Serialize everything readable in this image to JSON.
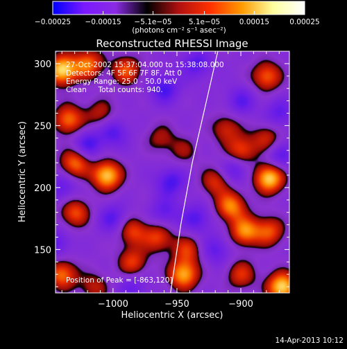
{
  "chart_data": {
    "type": "heatmap",
    "title": "Reconstructed RHESSI Image",
    "xlabel": "Heliocentric X (arcsec)",
    "ylabel": "Heliocentric Y (arcsec)",
    "xlim": [
      -1045,
      -862
    ],
    "ylim": [
      115,
      310
    ],
    "x_ticks": [
      -1000,
      -950,
      -900
    ],
    "x_tick_labels": [
      "−1000",
      "−950",
      "−900"
    ],
    "y_ticks": [
      150,
      200,
      250,
      300
    ],
    "y_tick_labels": [
      "150",
      "200",
      "250",
      "300"
    ],
    "colorbar": {
      "min": -0.00025,
      "max": 0.00025,
      "ticks": [
        -0.00025,
        -0.00015,
        -5.1e-05,
        5.1e-05,
        0.00015,
        0.00025
      ],
      "tick_labels": [
        "−0.00025",
        "−0.00015",
        "−5.1e−05",
        "5.1e−05",
        "0.00015",
        "0.00025"
      ],
      "unit_label": "(photons cm⁻² s⁻¹ asec⁻²)",
      "colors": [
        "#0000ff",
        "#7a1aff",
        "#8a2be2",
        "#000000",
        "#b01010",
        "#ff3000",
        "#ff9a00",
        "#ffffa0",
        "#ffffff"
      ]
    },
    "annotations": [
      "27-Oct-2002 15:37:04.000 to 15:38:08.000",
      "Detectors: 4F 5F 6F 7F 8F, Att 0",
      "Energy Range: 25.0 - 50.0 keV",
      "Clean     Total counts: 940."
    ],
    "peak_label": "Position of Peak = [-863,120]",
    "limb": [
      [
        -955,
        115
      ],
      [
        -947,
        170
      ],
      [
        -938,
        220
      ],
      [
        -928,
        265
      ],
      [
        -918,
        310
      ]
    ],
    "peaks": [
      {
        "x": -1040,
        "y": 295,
        "v": 1.0
      },
      {
        "x": -1035,
        "y": 255,
        "v": 0.7
      },
      {
        "x": -1030,
        "y": 220,
        "v": 0.7
      },
      {
        "x": -1005,
        "y": 210,
        "v": 0.95
      },
      {
        "x": -1030,
        "y": 180,
        "v": 0.6
      },
      {
        "x": -1020,
        "y": 300,
        "v": 0.7
      },
      {
        "x": -990,
        "y": 295,
        "v": 0.6
      },
      {
        "x": -1010,
        "y": 260,
        "v": 0.4
      },
      {
        "x": -985,
        "y": 165,
        "v": 0.55
      },
      {
        "x": -985,
        "y": 140,
        "v": 0.55
      },
      {
        "x": -965,
        "y": 160,
        "v": 0.55
      },
      {
        "x": -945,
        "y": 130,
        "v": 0.85
      },
      {
        "x": -942,
        "y": 150,
        "v": 0.5
      },
      {
        "x": -1040,
        "y": 130,
        "v": 0.7
      },
      {
        "x": -1015,
        "y": 120,
        "v": 0.4
      },
      {
        "x": -900,
        "y": 230,
        "v": 0.6
      },
      {
        "x": -878,
        "y": 208,
        "v": 1.0
      },
      {
        "x": -880,
        "y": 240,
        "v": 0.45
      },
      {
        "x": -880,
        "y": 290,
        "v": 0.65
      },
      {
        "x": -908,
        "y": 185,
        "v": 0.75
      },
      {
        "x": -920,
        "y": 205,
        "v": 0.5
      },
      {
        "x": -897,
        "y": 165,
        "v": 0.75
      },
      {
        "x": -878,
        "y": 165,
        "v": 0.6
      },
      {
        "x": -868,
        "y": 120,
        "v": 1.0
      },
      {
        "x": -900,
        "y": 130,
        "v": 0.5
      },
      {
        "x": -912,
        "y": 248,
        "v": 0.45
      },
      {
        "x": -963,
        "y": 240,
        "v": 0.35
      },
      {
        "x": -945,
        "y": 230,
        "v": 0.3
      },
      {
        "x": -1020,
        "y": 235,
        "v": -0.45
      },
      {
        "x": -1000,
        "y": 175,
        "v": -0.4
      },
      {
        "x": -1045,
        "y": 155,
        "v": -0.35
      },
      {
        "x": -1000,
        "y": 245,
        "v": -0.4
      },
      {
        "x": -960,
        "y": 280,
        "v": -0.45
      },
      {
        "x": -935,
        "y": 300,
        "v": -0.4
      },
      {
        "x": -955,
        "y": 205,
        "v": -0.45
      },
      {
        "x": -935,
        "y": 175,
        "v": -0.4
      },
      {
        "x": -905,
        "y": 215,
        "v": -0.4
      },
      {
        "x": -870,
        "y": 225,
        "v": -0.4
      },
      {
        "x": -870,
        "y": 260,
        "v": -0.35
      },
      {
        "x": -900,
        "y": 270,
        "v": -0.35
      },
      {
        "x": -920,
        "y": 150,
        "v": -0.35
      },
      {
        "x": -960,
        "y": 180,
        "v": -0.35
      },
      {
        "x": -985,
        "y": 120,
        "v": -0.3
      },
      {
        "x": -1040,
        "y": 200,
        "v": -0.35
      }
    ]
  },
  "footer": {
    "date": "14-Apr-2013 10:12"
  }
}
